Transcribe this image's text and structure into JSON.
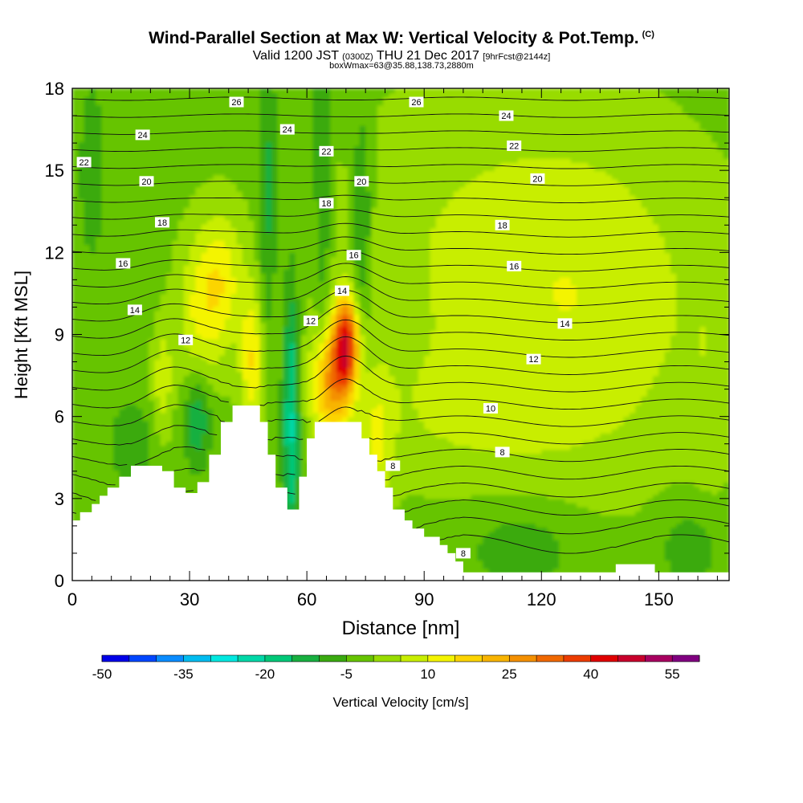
{
  "title": {
    "main": "Wind-Parallel Section at Max W: Vertical Velocity & Pot.Temp.",
    "copyright": "(C)",
    "valid_prefix": "Valid 1200 JST",
    "valid_utc": "(0300Z)",
    "valid_date": "THU 21 Dec 2017",
    "forecast": "[9hrFcst@2144z]",
    "box_info": "boxWmax=63@35.88,138.73,2880m"
  },
  "chart_data": {
    "type": "heatmap",
    "xlabel": "Distance [nm]",
    "ylabel": "Height [Kft MSL]",
    "x_range": [
      0,
      168
    ],
    "y_range": [
      0,
      18
    ],
    "x_ticks": [
      0,
      30,
      60,
      90,
      120,
      150
    ],
    "y_ticks": [
      0,
      3,
      6,
      9,
      12,
      15,
      18
    ],
    "colorbar": {
      "label": "Vertical Velocity [cm/s]",
      "min": -50,
      "max": 60,
      "step": 5,
      "tick_labels": [
        -50,
        -35,
        -20,
        -5,
        10,
        25,
        40,
        55
      ],
      "colors": [
        "#0000e8",
        "#0046ff",
        "#0a8cff",
        "#00bcf0",
        "#00e8e0",
        "#00d8a8",
        "#00c878",
        "#18b040",
        "#3aaa10",
        "#66c400",
        "#98dc00",
        "#c8ee00",
        "#f4f400",
        "#fcd400",
        "#f8b400",
        "#f49000",
        "#f06800",
        "#ec3c00",
        "#e00000",
        "#c8002c",
        "#a80060",
        "#800080"
      ]
    },
    "terrain_kft": [
      [
        0,
        2.2
      ],
      [
        2,
        2.2
      ],
      [
        2,
        2.5
      ],
      [
        5,
        2.5
      ],
      [
        5,
        2.8
      ],
      [
        7,
        2.8
      ],
      [
        7,
        3.1
      ],
      [
        9,
        3.1
      ],
      [
        9,
        3.4
      ],
      [
        12,
        3.4
      ],
      [
        12,
        3.8
      ],
      [
        15,
        3.8
      ],
      [
        15,
        4.2
      ],
      [
        23,
        4.2
      ],
      [
        23,
        4.0
      ],
      [
        26,
        4.0
      ],
      [
        26,
        3.4
      ],
      [
        29,
        3.4
      ],
      [
        29,
        3.2
      ],
      [
        32,
        3.2
      ],
      [
        32,
        3.6
      ],
      [
        35,
        3.6
      ],
      [
        35,
        4.6
      ],
      [
        38,
        4.6
      ],
      [
        38,
        5.8
      ],
      [
        41,
        5.8
      ],
      [
        41,
        6.4
      ],
      [
        48,
        6.4
      ],
      [
        48,
        5.8
      ],
      [
        50,
        5.8
      ],
      [
        50,
        4.6
      ],
      [
        52,
        4.6
      ],
      [
        52,
        3.4
      ],
      [
        55,
        3.4
      ],
      [
        55,
        2.6
      ],
      [
        58,
        2.6
      ],
      [
        58,
        3.8
      ],
      [
        60,
        3.8
      ],
      [
        60,
        5.2
      ],
      [
        62,
        5.2
      ],
      [
        62,
        5.8
      ],
      [
        74,
        5.8
      ],
      [
        74,
        5.2
      ],
      [
        76,
        5.2
      ],
      [
        76,
        4.6
      ],
      [
        78,
        4.6
      ],
      [
        78,
        4.0
      ],
      [
        80,
        4.0
      ],
      [
        80,
        3.4
      ],
      [
        82,
        3.4
      ],
      [
        82,
        2.6
      ],
      [
        85,
        2.6
      ],
      [
        85,
        2.2
      ],
      [
        87,
        2.2
      ],
      [
        87,
        1.9
      ],
      [
        90,
        1.9
      ],
      [
        90,
        1.6
      ],
      [
        94,
        1.6
      ],
      [
        94,
        1.3
      ],
      [
        96,
        1.3
      ],
      [
        96,
        1.0
      ],
      [
        98,
        1.0
      ],
      [
        98,
        0.7
      ],
      [
        100,
        0.7
      ],
      [
        100,
        0.3
      ],
      [
        139,
        0.3
      ],
      [
        139,
        0.6
      ],
      [
        149,
        0.6
      ],
      [
        149,
        0.3
      ],
      [
        168,
        0.3
      ]
    ],
    "theta_contour_labels": [
      {
        "x": 3,
        "y": 15.3,
        "v": "22"
      },
      {
        "x": 18,
        "y": 16.3,
        "v": "24"
      },
      {
        "x": 42,
        "y": 17.5,
        "v": "26"
      },
      {
        "x": 19,
        "y": 14.6,
        "v": "20"
      },
      {
        "x": 23,
        "y": 13.1,
        "v": "18"
      },
      {
        "x": 13,
        "y": 11.6,
        "v": "16"
      },
      {
        "x": 16,
        "y": 9.9,
        "v": "14"
      },
      {
        "x": 29,
        "y": 8.8,
        "v": "12"
      },
      {
        "x": 55,
        "y": 16.5,
        "v": "24"
      },
      {
        "x": 65,
        "y": 15.7,
        "v": "22"
      },
      {
        "x": 74,
        "y": 14.6,
        "v": "20"
      },
      {
        "x": 65,
        "y": 13.8,
        "v": "18"
      },
      {
        "x": 72,
        "y": 11.9,
        "v": "16"
      },
      {
        "x": 69,
        "y": 10.6,
        "v": "14"
      },
      {
        "x": 61,
        "y": 9.5,
        "v": "12"
      },
      {
        "x": 88,
        "y": 17.5,
        "v": "26"
      },
      {
        "x": 111,
        "y": 17.0,
        "v": "24"
      },
      {
        "x": 113,
        "y": 15.9,
        "v": "22"
      },
      {
        "x": 119,
        "y": 14.7,
        "v": "20"
      },
      {
        "x": 110,
        "y": 13.0,
        "v": "18"
      },
      {
        "x": 113,
        "y": 11.5,
        "v": "16"
      },
      {
        "x": 126,
        "y": 9.4,
        "v": "14"
      },
      {
        "x": 118,
        "y": 8.1,
        "v": "12"
      },
      {
        "x": 107,
        "y": 6.3,
        "v": "10"
      },
      {
        "x": 110,
        "y": 4.7,
        "v": "8"
      },
      {
        "x": 82,
        "y": 4.2,
        "v": "8"
      },
      {
        "x": 100,
        "y": 1.0,
        "v": "8"
      }
    ]
  }
}
